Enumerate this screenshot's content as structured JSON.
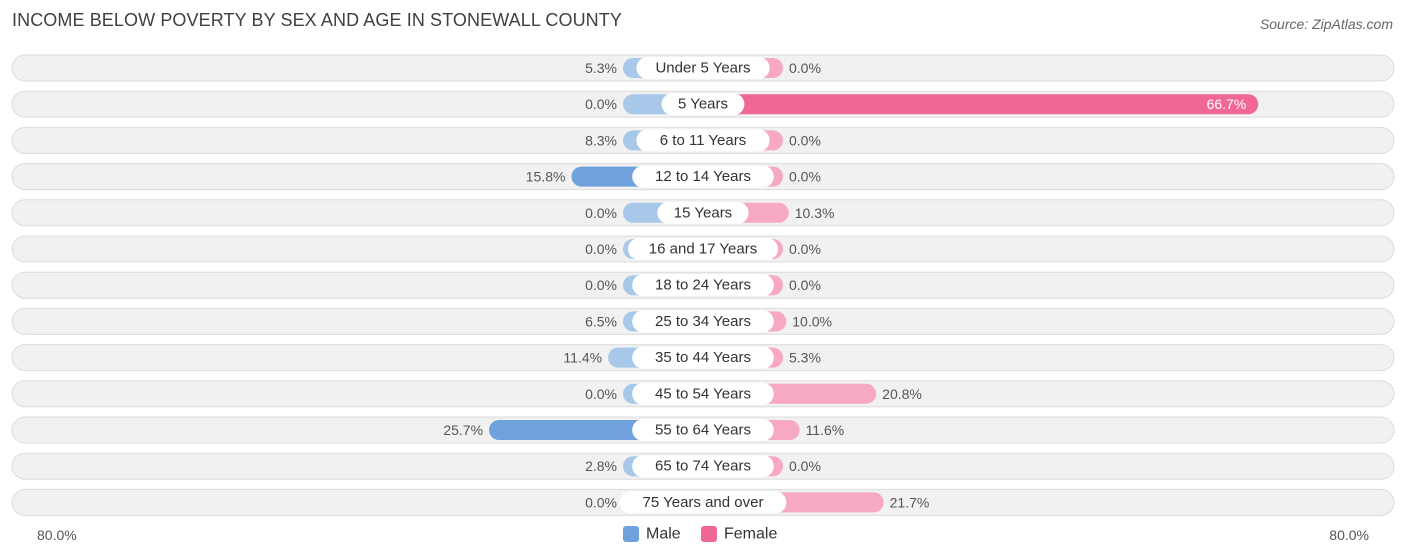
{
  "title": "INCOME BELOW POVERTY BY SEX AND AGE IN STONEWALL COUNTY",
  "source": "Source: ZipAtlas.com",
  "colors": {
    "male": "#a8c8ea",
    "male_strong": "#6fa2dc",
    "female": "#f6a9c1",
    "female_strong": "#f06794"
  },
  "chart_data": {
    "type": "bar",
    "orientation": "horizontal-diverging",
    "title": "INCOME BELOW POVERTY BY SEX AND AGE IN STONEWALL COUNTY",
    "categories": [
      "Under 5 Years",
      "5 Years",
      "6 to 11 Years",
      "12 to 14 Years",
      "15 Years",
      "16 and 17 Years",
      "18 to 24 Years",
      "25 to 34 Years",
      "35 to 44 Years",
      "45 to 54 Years",
      "55 to 64 Years",
      "65 to 74 Years",
      "75 Years and over"
    ],
    "series": [
      {
        "name": "Male",
        "values": [
          5.3,
          0.0,
          8.3,
          15.8,
          0.0,
          0.0,
          0.0,
          6.5,
          11.4,
          0.0,
          25.7,
          2.8,
          0.0
        ]
      },
      {
        "name": "Female",
        "values": [
          0.0,
          66.7,
          0.0,
          0.0,
          10.3,
          0.0,
          0.0,
          10.0,
          5.3,
          20.8,
          11.6,
          0.0,
          21.7
        ]
      }
    ],
    "value_labels": {
      "male": [
        "5.3%",
        "0.0%",
        "8.3%",
        "15.8%",
        "0.0%",
        "0.0%",
        "0.0%",
        "6.5%",
        "11.4%",
        "0.0%",
        "25.7%",
        "2.8%",
        "0.0%"
      ],
      "female": [
        "0.0%",
        "66.7%",
        "0.0%",
        "0.0%",
        "10.3%",
        "0.0%",
        "0.0%",
        "10.0%",
        "5.3%",
        "20.8%",
        "11.6%",
        "0.0%",
        "21.7%"
      ]
    },
    "xlim": [
      -80,
      80
    ],
    "axis_labels": {
      "left": "80.0%",
      "right": "80.0%"
    },
    "legend": {
      "position": "bottom-center",
      "entries": [
        "Male",
        "Female"
      ]
    }
  }
}
